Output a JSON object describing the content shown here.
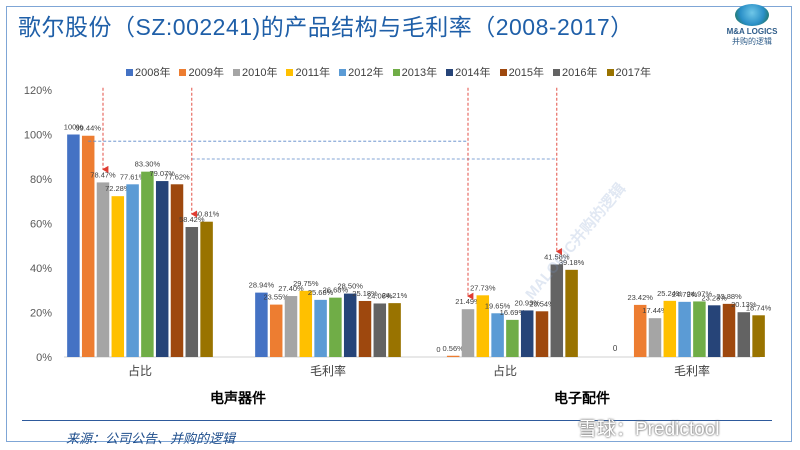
{
  "title": "歌尔股份（SZ:002241)的产品结构与毛利率（2008-2017）",
  "logo": {
    "en": "M&A LOGICS",
    "cn": "并购的逻辑"
  },
  "source": "来源：公司公告、并购的逻辑",
  "watermark": {
    "brand": "雪球：Predictool",
    "diagonal": "MALOGIC并购的逻辑"
  },
  "group_titles": [
    "电声器件",
    "电子配件"
  ],
  "colors": {
    "2008年": "#4472c4",
    "2009年": "#ed7d31",
    "2010年": "#a5a5a5",
    "2011年": "#ffc000",
    "2012年": "#5b9bd5",
    "2013年": "#70ad47",
    "2014年": "#264478",
    "2015年": "#9e480e",
    "2016年": "#636363",
    "2017年": "#997300"
  },
  "chart_data": {
    "type": "bar",
    "title": "歌尔股份（SZ:002241)的产品结构与毛利率（2008-2017）",
    "categories": [
      "占比",
      "毛利率",
      "占比",
      "毛利率"
    ],
    "groups": [
      "电声器件",
      "电声器件",
      "电子配件",
      "电子配件"
    ],
    "ylim": [
      0,
      120
    ],
    "yticks": [
      "0%",
      "20%",
      "40%",
      "60%",
      "80%",
      "100%",
      "120%"
    ],
    "grid": false,
    "legend": "top",
    "series": [
      {
        "name": "2008年",
        "values": [
          100,
          28.94,
          0,
          null
        ],
        "labels": [
          "100%",
          "28.94%",
          "0",
          ""
        ]
      },
      {
        "name": "2009年",
        "values": [
          99.44,
          23.55,
          0.56,
          23.42
        ],
        "labels": [
          "99.44%",
          "23.55%",
          "0.56%",
          "23.42%"
        ]
      },
      {
        "name": "2010年",
        "values": [
          78.47,
          27.4,
          21.49,
          17.44
        ],
        "labels": [
          "78.47%",
          "27.40%",
          "21.49%",
          "17.44%"
        ]
      },
      {
        "name": "2011年",
        "values": [
          72.28,
          29.75,
          27.73,
          25.24
        ],
        "labels": [
          "72.28%",
          "29.75%",
          "27.73%",
          "25.24%"
        ]
      },
      {
        "name": "2012年",
        "values": [
          77.61,
          25.68,
          19.65,
          24.79
        ],
        "labels": [
          "77.61%",
          "25.68%",
          "19.65%",
          "24.79%"
        ]
      },
      {
        "name": "2013年",
        "values": [
          83.3,
          26.68,
          16.69,
          24.97
        ],
        "labels": [
          "83.30%",
          "26.68%",
          "16.69%",
          "24.97%"
        ]
      },
      {
        "name": "2014年",
        "values": [
          79.07,
          28.5,
          20.93,
          23.23
        ],
        "labels": [
          "79.07%",
          "28.50%",
          "20.93%",
          "23.23%"
        ]
      },
      {
        "name": "2015年",
        "values": [
          77.62,
          25.18,
          20.54,
          23.88
        ],
        "labels": [
          "77.62%",
          "25.18%",
          "20.54%",
          "23.88%"
        ]
      },
      {
        "name": "2016年",
        "values": [
          58.42,
          24.06,
          41.58,
          20.13
        ],
        "labels": [
          "58.42%",
          "24.06%",
          "41.58%",
          "20.13%"
        ]
      },
      {
        "name": "2017年",
        "values": [
          60.81,
          24.21,
          39.18,
          18.74
        ],
        "labels": [
          "60.81%",
          "24.21%",
          "39.18%",
          "18.74%"
        ]
      }
    ],
    "extra_labels": [
      {
        "category_index": 3,
        "text": "0"
      }
    ],
    "annotations": {
      "arrows": [
        {
          "category_index": 0,
          "series": "2010年"
        },
        {
          "category_index": 0,
          "series": "2016年"
        },
        {
          "category_index": 2,
          "series": "2010年"
        },
        {
          "category_index": 2,
          "series": "2016年"
        }
      ],
      "dashed_links": [
        {
          "from": {
            "category_index": 0,
            "series": "2009年"
          },
          "to": {
            "category_index": 2,
            "series": "2010年"
          },
          "y": 97
        },
        {
          "from": {
            "category_index": 0,
            "series": "2016年"
          },
          "to": {
            "category_index": 2,
            "series": "2016年"
          },
          "y": 89
        }
      ]
    }
  }
}
